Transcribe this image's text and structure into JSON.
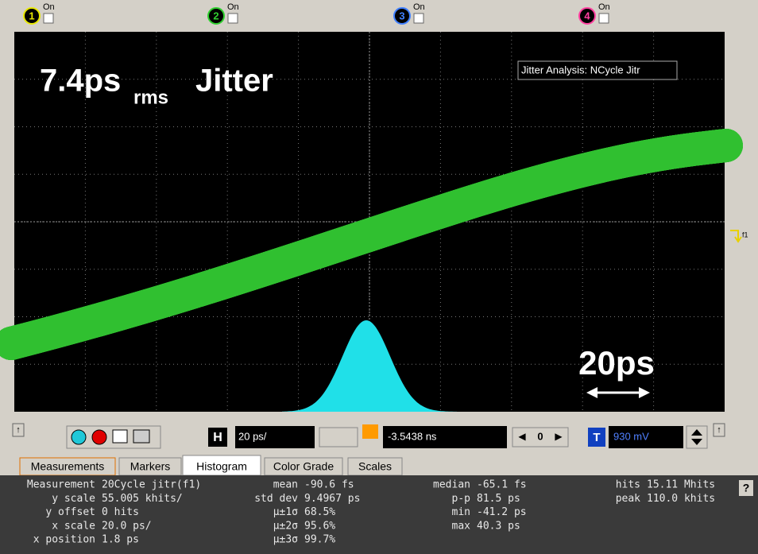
{
  "channels": [
    {
      "number": "1",
      "state": "On",
      "color": "#e8e800"
    },
    {
      "number": "2",
      "state": "On",
      "color": "#30d030"
    },
    {
      "number": "3",
      "state": "On",
      "color": "#4080ff"
    },
    {
      "number": "4",
      "state": "On",
      "color": "#ff40a0"
    }
  ],
  "display": {
    "jitter_value": "7.4ps",
    "jitter_subscript": "rms",
    "jitter_word": "Jitter",
    "analysis_box": "Jitter Analysis: NCycle Jitr",
    "scale_label": "20ps",
    "marker": "f1"
  },
  "toolbar": {
    "h_button": "H",
    "h_scale": "20 ps/",
    "h_position": "-3.5438 ns",
    "zero_button": "0",
    "t_button": "T",
    "trigger_level": "930 mV"
  },
  "tabs": [
    "Measurements",
    "Markers",
    "Histogram",
    "Color Grade",
    "Scales"
  ],
  "help": "?",
  "measurements": {
    "columns": [
      [
        {
          "label": "Measurement",
          "value": "20Cycle jitr(f1)"
        },
        {
          "label": "y scale",
          "value": "55.005 khits/"
        },
        {
          "label": "y offset",
          "value": "0 hits"
        },
        {
          "label": "x scale",
          "value": "20.0 ps/"
        },
        {
          "label": "x position",
          "value": "1.8 ps"
        }
      ],
      [
        {
          "label": "mean",
          "value": "-90.6 fs"
        },
        {
          "label": "std dev",
          "value": "9.4967 ps"
        },
        {
          "label": "µ±1σ",
          "value": "68.5%"
        },
        {
          "label": "µ±2σ",
          "value": "95.6%"
        },
        {
          "label": "µ±3σ",
          "value": "99.7%"
        }
      ],
      [
        {
          "label": "median",
          "value": "-65.1 fs"
        },
        {
          "label": "p-p",
          "value": "81.5 ps"
        },
        {
          "label": "min",
          "value": "-41.2 ps"
        },
        {
          "label": "max",
          "value": "40.3 ps"
        }
      ],
      [
        {
          "label": "hits",
          "value": "15.11 Mhits"
        },
        {
          "label": "peak",
          "value": "110.0 khits"
        }
      ]
    ]
  }
}
